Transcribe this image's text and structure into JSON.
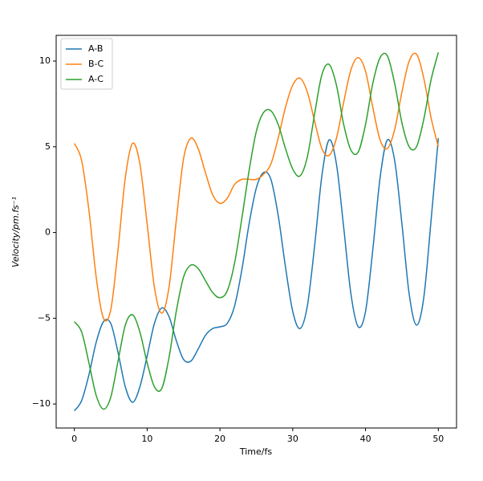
{
  "chart_data": {
    "type": "line",
    "x_label": "Time/fs",
    "y_label": "Velocity/pm.fs⁻¹",
    "x": [
      0,
      1,
      2,
      3,
      4,
      5,
      6,
      7,
      8,
      9,
      10,
      11,
      12,
      13,
      14,
      15,
      16,
      17,
      18,
      19,
      20,
      21,
      22,
      23,
      24,
      25,
      26,
      27,
      28,
      29,
      30,
      31,
      32,
      33,
      34,
      35,
      36,
      37,
      38,
      39,
      40,
      41,
      42,
      43,
      44,
      45,
      46,
      47,
      48,
      49,
      50
    ],
    "series": [
      {
        "name": "A-B",
        "color": "#1f77b4",
        "values": [
          -10.4,
          -9.8,
          -8.3,
          -6.4,
          -5.2,
          -5.3,
          -7.0,
          -9.0,
          -9.9,
          -9.0,
          -7.2,
          -5.3,
          -4.4,
          -4.9,
          -6.3,
          -7.4,
          -7.5,
          -6.8,
          -6.0,
          -5.6,
          -5.5,
          -5.3,
          -4.3,
          -2.2,
          0.5,
          2.6,
          3.5,
          3.1,
          1.0,
          -2.0,
          -4.6,
          -5.6,
          -4.3,
          -0.8,
          3.3,
          5.4,
          4.0,
          0.3,
          -3.6,
          -5.5,
          -4.6,
          -1.0,
          3.2,
          5.4,
          4.2,
          0.5,
          -3.6,
          -5.4,
          -3.8,
          0.7,
          5.5
        ]
      },
      {
        "name": "B-C",
        "color": "#ff7f0e",
        "values": [
          5.2,
          4.2,
          1.3,
          -2.6,
          -5.0,
          -4.5,
          -1.0,
          3.2,
          5.2,
          4.0,
          0.5,
          -3.2,
          -4.7,
          -3.2,
          0.7,
          4.3,
          5.5,
          4.9,
          3.5,
          2.2,
          1.7,
          2.0,
          2.8,
          3.1,
          3.1,
          3.1,
          3.4,
          4.0,
          5.5,
          7.3,
          8.6,
          9.0,
          8.2,
          6.5,
          4.9,
          4.5,
          5.5,
          7.6,
          9.5,
          10.2,
          9.4,
          7.3,
          5.4,
          4.9,
          6.0,
          8.2,
          10.0,
          10.4,
          9.0,
          6.7,
          5.0
        ]
      },
      {
        "name": "A-C",
        "color": "#2ca02c",
        "values": [
          -5.2,
          -5.8,
          -7.6,
          -9.5,
          -10.3,
          -9.6,
          -7.5,
          -5.4,
          -4.8,
          -5.8,
          -7.6,
          -9.0,
          -9.1,
          -7.3,
          -4.6,
          -2.6,
          -1.9,
          -2.1,
          -2.8,
          -3.5,
          -3.8,
          -3.4,
          -1.8,
          0.8,
          3.6,
          5.9,
          7.0,
          7.1,
          6.3,
          4.9,
          3.7,
          3.3,
          4.4,
          6.9,
          9.2,
          9.8,
          8.6,
          6.3,
          4.8,
          4.7,
          6.3,
          8.7,
          10.2,
          10.3,
          8.7,
          6.4,
          5.0,
          5.0,
          6.6,
          8.9,
          10.5
        ]
      }
    ],
    "xlim": [
      -2.5,
      52.5
    ],
    "ylim": [
      -11.4,
      11.5
    ],
    "xticks": [
      0,
      10,
      20,
      30,
      40,
      50
    ],
    "yticks": [
      {
        "value": -10,
        "label": "−10"
      },
      {
        "value": -5,
        "label": "−5"
      },
      0,
      5,
      10
    ],
    "legend": "upper left",
    "grid": false
  }
}
